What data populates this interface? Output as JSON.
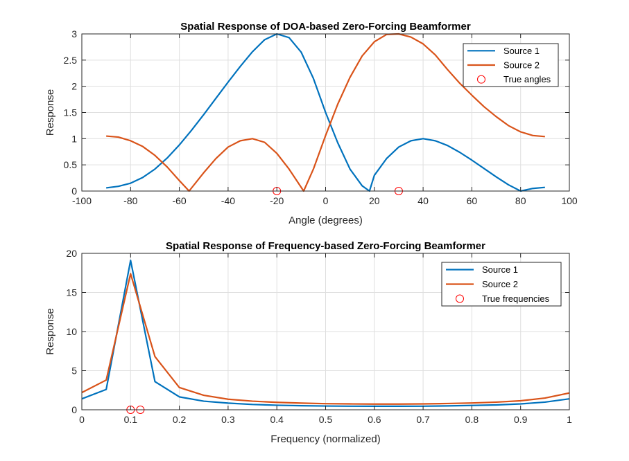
{
  "chart_data": [
    {
      "type": "line",
      "title": "Spatial Response of DOA-based Zero-Forcing Beamformer",
      "xlabel": "Angle (degrees)",
      "ylabel": "Response",
      "xlim": [
        -100,
        100
      ],
      "ylim": [
        0,
        3
      ],
      "xticks": [
        -100,
        -80,
        -60,
        -40,
        -20,
        0,
        20,
        40,
        60,
        80,
        100
      ],
      "yticks": [
        0,
        0.5,
        1,
        1.5,
        2,
        2.5,
        3
      ],
      "xtick_labels": [
        "-100",
        "-80",
        "-60",
        "-40",
        "-20",
        "0",
        "20",
        "40",
        "60",
        "80",
        "100"
      ],
      "ytick_labels": [
        "0",
        "0.5",
        "1",
        "1.5",
        "2",
        "2.5",
        "3"
      ],
      "grid": true,
      "legend": {
        "position": "top-right",
        "entries": [
          "Source 1",
          "Source 2",
          "True angles"
        ]
      },
      "series": [
        {
          "name": "Source 1",
          "color": "#0072bd",
          "x": [
            -90,
            -85,
            -80,
            -75,
            -70,
            -65,
            -60,
            -55,
            -50,
            -45,
            -40,
            -35,
            -30,
            -25,
            -20,
            -15,
            -10,
            -5,
            0,
            5,
            10,
            15,
            18,
            20,
            25,
            30,
            35,
            40,
            45,
            50,
            55,
            60,
            65,
            70,
            75,
            80,
            85,
            90
          ],
          "y": [
            0.06,
            0.09,
            0.15,
            0.26,
            0.42,
            0.63,
            0.88,
            1.16,
            1.46,
            1.77,
            2.08,
            2.38,
            2.66,
            2.89,
            3.0,
            2.93,
            2.65,
            2.15,
            1.5,
            0.92,
            0.42,
            0.1,
            0.0,
            0.3,
            0.62,
            0.84,
            0.96,
            1.0,
            0.96,
            0.87,
            0.74,
            0.59,
            0.43,
            0.27,
            0.12,
            0.0,
            0.05,
            0.07
          ]
        },
        {
          "name": "Source 2",
          "color": "#d95319",
          "x": [
            -90,
            -85,
            -80,
            -75,
            -70,
            -65,
            -60,
            -56,
            -50,
            -45,
            -40,
            -35,
            -30,
            -25,
            -20,
            -15,
            -9,
            -5,
            0,
            5,
            10,
            15,
            20,
            25,
            30,
            35,
            40,
            45,
            50,
            55,
            60,
            65,
            70,
            75,
            80,
            85,
            90
          ],
          "y": [
            1.05,
            1.03,
            0.96,
            0.85,
            0.68,
            0.46,
            0.2,
            0.0,
            0.35,
            0.62,
            0.84,
            0.96,
            1.0,
            0.93,
            0.72,
            0.42,
            0.0,
            0.42,
            1.06,
            1.66,
            2.17,
            2.58,
            2.85,
            2.99,
            3.0,
            2.94,
            2.81,
            2.6,
            2.32,
            2.06,
            1.83,
            1.61,
            1.42,
            1.25,
            1.13,
            1.06,
            1.04
          ]
        }
      ],
      "markers": {
        "name": "True angles",
        "color": "#ff0000",
        "x": [
          -20,
          30
        ],
        "y": [
          0,
          0
        ]
      }
    },
    {
      "type": "line",
      "title": "Spatial Response of Frequency-based Zero-Forcing Beamformer",
      "xlabel": "Frequency (normalized)",
      "ylabel": "Response",
      "xlim": [
        0,
        1
      ],
      "ylim": [
        0,
        20
      ],
      "xticks": [
        0,
        0.1,
        0.2,
        0.3,
        0.4,
        0.5,
        0.6,
        0.7,
        0.8,
        0.9,
        1
      ],
      "yticks": [
        0,
        5,
        10,
        15,
        20
      ],
      "xtick_labels": [
        "0",
        "0.1",
        "0.2",
        "0.3",
        "0.4",
        "0.5",
        "0.6",
        "0.7",
        "0.8",
        "0.9",
        "1"
      ],
      "ytick_labels": [
        "0",
        "5",
        "10",
        "15",
        "20"
      ],
      "grid": true,
      "legend": {
        "position": "top-right",
        "entries": [
          "Source 1",
          "Source 2",
          "True frequencies"
        ]
      },
      "series": [
        {
          "name": "Source 1",
          "color": "#0072bd",
          "x": [
            0,
            0.05,
            0.1,
            0.15,
            0.2,
            0.25,
            0.3,
            0.35,
            0.4,
            0.45,
            0.5,
            0.55,
            0.6,
            0.65,
            0.7,
            0.75,
            0.8,
            0.85,
            0.9,
            0.95,
            1.0
          ],
          "y": [
            1.4,
            2.6,
            19.1,
            3.6,
            1.65,
            1.1,
            0.85,
            0.68,
            0.58,
            0.52,
            0.48,
            0.46,
            0.45,
            0.45,
            0.46,
            0.5,
            0.55,
            0.62,
            0.75,
            0.98,
            1.4
          ]
        },
        {
          "name": "Source 2",
          "color": "#d95319",
          "x": [
            0,
            0.05,
            0.1,
            0.15,
            0.2,
            0.25,
            0.3,
            0.35,
            0.4,
            0.45,
            0.5,
            0.55,
            0.6,
            0.65,
            0.7,
            0.75,
            0.8,
            0.85,
            0.9,
            0.95,
            1.0
          ],
          "y": [
            2.2,
            3.8,
            17.4,
            6.8,
            2.85,
            1.85,
            1.35,
            1.1,
            0.95,
            0.85,
            0.78,
            0.75,
            0.73,
            0.73,
            0.75,
            0.8,
            0.87,
            0.98,
            1.15,
            1.5,
            2.15
          ]
        }
      ],
      "markers": {
        "name": "True frequencies",
        "color": "#ff0000",
        "x": [
          0.1,
          0.12
        ],
        "y": [
          0,
          0
        ]
      }
    }
  ]
}
